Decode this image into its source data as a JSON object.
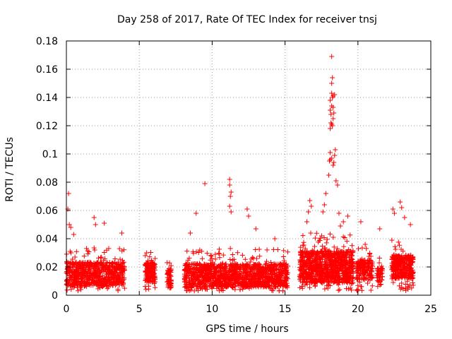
{
  "chart_data": {
    "type": "scatter",
    "title": "Day 258 of 2017, Rate Of TEC Index for receiver tnsj",
    "xlabel": "GPS time / hours",
    "ylabel": "ROTI / TECUs",
    "xlim": [
      0,
      25
    ],
    "ylim": [
      0,
      0.18
    ],
    "xticks": [
      0,
      5,
      10,
      15,
      20,
      25
    ],
    "yticks": [
      0,
      0.02,
      0.04,
      0.06,
      0.08,
      0.1,
      0.12,
      0.14,
      0.16,
      0.18
    ],
    "xtick_labels": [
      "0",
      "5",
      "10",
      "15",
      "20",
      "25"
    ],
    "ytick_labels": [
      "0",
      "0.02",
      "0.04",
      "0.06",
      "0.08",
      "0.1",
      "0.12",
      "0.14",
      "0.16",
      "0.18"
    ],
    "grid": true,
    "marker": "+",
    "color": "#ff0000",
    "series": [
      {
        "name": "ROTI",
        "clusters": [
          {
            "x0": 0.0,
            "x1": 4.0,
            "base": 0.015,
            "spread": 0.012,
            "n": 700
          },
          {
            "x0": 5.4,
            "x1": 6.1,
            "base": 0.016,
            "spread": 0.01,
            "n": 150
          },
          {
            "x0": 6.9,
            "x1": 7.2,
            "base": 0.012,
            "spread": 0.01,
            "n": 60
          },
          {
            "x0": 8.1,
            "x1": 15.2,
            "base": 0.014,
            "spread": 0.012,
            "n": 1300
          },
          {
            "x0": 16.0,
            "x1": 19.7,
            "base": 0.02,
            "spread": 0.016,
            "n": 900
          },
          {
            "x0": 19.9,
            "x1": 21.0,
            "base": 0.018,
            "spread": 0.01,
            "n": 180
          },
          {
            "x0": 21.3,
            "x1": 21.7,
            "base": 0.015,
            "spread": 0.008,
            "n": 50
          },
          {
            "x0": 22.3,
            "x1": 23.8,
            "base": 0.02,
            "spread": 0.012,
            "n": 350
          }
        ],
        "points": [
          [
            0.1,
            0.061
          ],
          [
            0.15,
            0.072
          ],
          [
            0.2,
            0.05
          ],
          [
            0.3,
            0.048
          ],
          [
            0.5,
            0.043
          ],
          [
            1.9,
            0.055
          ],
          [
            2.0,
            0.05
          ],
          [
            2.6,
            0.051
          ],
          [
            3.8,
            0.044
          ],
          [
            8.5,
            0.044
          ],
          [
            8.9,
            0.058
          ],
          [
            9.5,
            0.079
          ],
          [
            11.2,
            0.082
          ],
          [
            11.2,
            0.078
          ],
          [
            11.3,
            0.073
          ],
          [
            11.25,
            0.07
          ],
          [
            11.2,
            0.063
          ],
          [
            11.3,
            0.059
          ],
          [
            12.4,
            0.061
          ],
          [
            12.5,
            0.056
          ],
          [
            13.0,
            0.047
          ],
          [
            14.3,
            0.04
          ],
          [
            16.5,
            0.052
          ],
          [
            16.7,
            0.067
          ],
          [
            16.8,
            0.063
          ],
          [
            16.6,
            0.059
          ],
          [
            17.6,
            0.059
          ],
          [
            17.7,
            0.064
          ],
          [
            17.8,
            0.072
          ],
          [
            18.0,
            0.085
          ],
          [
            18.05,
            0.095
          ],
          [
            18.1,
            0.101
          ],
          [
            18.1,
            0.096
          ],
          [
            18.2,
            0.097
          ],
          [
            18.3,
            0.092
          ],
          [
            18.35,
            0.094
          ],
          [
            18.4,
            0.099
          ],
          [
            18.45,
            0.103
          ],
          [
            18.1,
            0.118
          ],
          [
            18.15,
            0.122
          ],
          [
            18.2,
            0.121
          ],
          [
            18.25,
            0.12
          ],
          [
            18.3,
            0.125
          ],
          [
            18.1,
            0.131
          ],
          [
            18.15,
            0.128
          ],
          [
            18.2,
            0.134
          ],
          [
            18.3,
            0.133
          ],
          [
            18.35,
            0.129
          ],
          [
            18.1,
            0.138
          ],
          [
            18.2,
            0.143
          ],
          [
            18.25,
            0.14
          ],
          [
            18.3,
            0.141
          ],
          [
            18.4,
            0.142
          ],
          [
            18.2,
            0.15
          ],
          [
            18.25,
            0.154
          ],
          [
            18.2,
            0.169
          ],
          [
            18.5,
            0.081
          ],
          [
            18.6,
            0.078
          ],
          [
            18.7,
            0.058
          ],
          [
            18.8,
            0.049
          ],
          [
            19.0,
            0.052
          ],
          [
            19.3,
            0.056
          ],
          [
            20.2,
            0.052
          ],
          [
            20.5,
            0.036
          ],
          [
            21.5,
            0.047
          ],
          [
            22.4,
            0.061
          ],
          [
            22.5,
            0.058
          ],
          [
            22.9,
            0.066
          ],
          [
            23.0,
            0.062
          ],
          [
            23.2,
            0.055
          ],
          [
            23.6,
            0.05
          ]
        ]
      }
    ]
  }
}
